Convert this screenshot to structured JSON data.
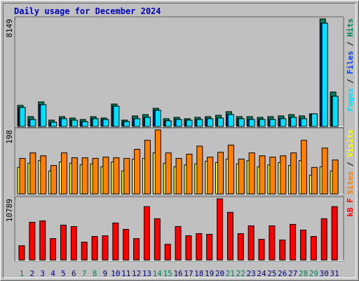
{
  "title": "Daily usage for December 2024",
  "legend_separator": " / ",
  "chart_data": [
    {
      "type": "bar",
      "ylim": [
        0,
        8149
      ],
      "yticks": [
        8149
      ],
      "series": [
        {
          "name": "Hits",
          "color": "#00805c",
          "values": [
            1600,
            745,
            1860,
            480,
            745,
            640,
            530,
            745,
            640,
            1700,
            480,
            800,
            900,
            1380,
            590,
            690,
            590,
            690,
            745,
            850,
            1120,
            745,
            745,
            690,
            745,
            800,
            900,
            800,
            960,
            8149,
            2610
          ]
        },
        {
          "name": "Files",
          "color": "#0040ff",
          "values": [
            1440,
            530,
            1650,
            320,
            590,
            480,
            370,
            590,
            530,
            1540,
            370,
            590,
            690,
            1220,
            430,
            530,
            480,
            530,
            590,
            640,
            900,
            590,
            530,
            530,
            530,
            590,
            690,
            590,
            960,
            7830,
            2290
          ]
        },
        {
          "name": "Pages",
          "color": "#00e0ff",
          "values": [
            1440,
            530,
            1650,
            320,
            590,
            480,
            370,
            590,
            530,
            1540,
            370,
            590,
            690,
            1220,
            430,
            530,
            480,
            530,
            590,
            640,
            900,
            590,
            530,
            530,
            530,
            590,
            690,
            590,
            960,
            7830,
            2290
          ]
        }
      ]
    },
    {
      "type": "bar",
      "ylim": [
        0,
        198
      ],
      "yticks": [
        198
      ],
      "series": [
        {
          "name": "Visits",
          "color": "#ffff00",
          "values": [
            82,
            95,
            103,
            71,
            99,
            95,
            90,
            93,
            84,
            99,
            71,
            108,
            110,
            127,
            95,
            84,
            90,
            93,
            101,
            97,
            108,
            93,
            103,
            84,
            90,
            97,
            88,
            103,
            58,
            84,
            71
          ]
        },
        {
          "name": "Sites",
          "color": "#ff8000",
          "values": [
            110,
            127,
            118,
            88,
            127,
            112,
            112,
            110,
            114,
            112,
            110,
            138,
            166,
            198,
            127,
            110,
            123,
            148,
            114,
            129,
            151,
            108,
            127,
            118,
            114,
            118,
            127,
            166,
            82,
            142,
            105
          ]
        }
      ]
    },
    {
      "type": "bar",
      "ylim": [
        0,
        10789
      ],
      "yticks": [
        10789
      ],
      "categories": [
        "1",
        "2",
        "3",
        "4",
        "5",
        "6",
        "7",
        "8",
        "9",
        "10",
        "11",
        "12",
        "13",
        "14",
        "15",
        "16",
        "17",
        "18",
        "19",
        "20",
        "21",
        "22",
        "23",
        "24",
        "25",
        "26",
        "27",
        "28",
        "29",
        "30",
        "31"
      ],
      "category_colors": [
        "#00805c",
        "#000080",
        "#000080",
        "#000080",
        "#000080",
        "#000080",
        "#00805c",
        "#00805c",
        "#000080",
        "#000080",
        "#000080",
        "#000080",
        "#000080",
        "#00805c",
        "#00805c",
        "#000080",
        "#000080",
        "#000080",
        "#000080",
        "#000080",
        "#00805c",
        "#00805c",
        "#000080",
        "#000080",
        "#000080",
        "#000080",
        "#000080",
        "#00805c",
        "#00805c",
        "#000080",
        "#000080"
      ],
      "series": [
        {
          "name": "kB F",
          "color": "#ff0000",
          "values": [
            2509,
            6649,
            6900,
            3764,
            6147,
            5896,
            3136,
            4140,
            4265,
            6523,
            5394,
            3764,
            9409,
            7276,
            2760,
            5896,
            4265,
            4642,
            4516,
            10789,
            8405,
            4642,
            6022,
            3638,
            6022,
            3513,
            6273,
            5269,
            4140,
            7276,
            9409
          ]
        }
      ]
    }
  ]
}
